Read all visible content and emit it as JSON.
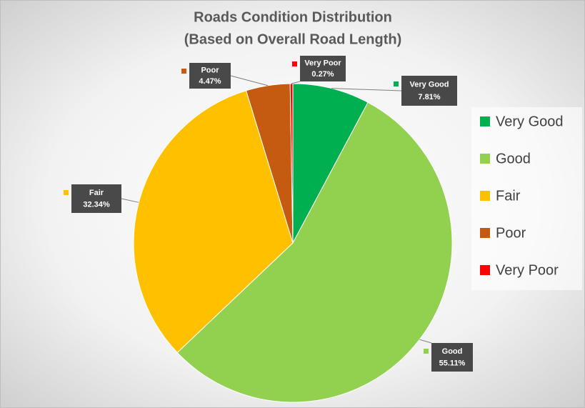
{
  "chart_data": {
    "type": "pie",
    "title": "Roads Condition Distribution",
    "subtitle": "(Based on Overall Road Length)",
    "categories": [
      "Very Good",
      "Good",
      "Fair",
      "Poor",
      "Very Poor"
    ],
    "values": [
      7.81,
      55.11,
      32.34,
      4.47,
      0.27
    ],
    "value_labels": [
      "7.81%",
      "55.11%",
      "32.34%",
      "4.47%",
      "0.27%"
    ],
    "colors": [
      "#00b050",
      "#92d050",
      "#ffc000",
      "#c55a11",
      "#ff0000"
    ],
    "legend": "right"
  }
}
